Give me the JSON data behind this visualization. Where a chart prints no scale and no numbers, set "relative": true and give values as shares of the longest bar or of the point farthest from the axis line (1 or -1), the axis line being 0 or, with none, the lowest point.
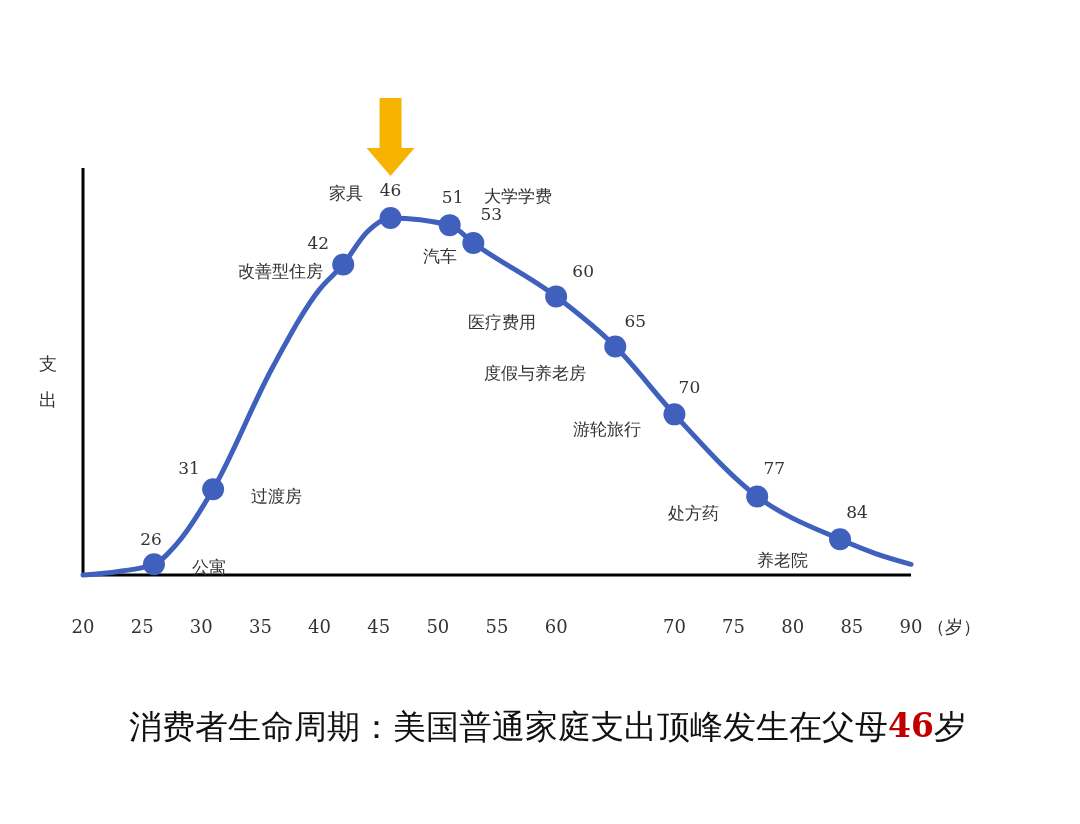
{
  "chart_data": {
    "type": "line",
    "relative": true,
    "title": "消费者生命周期：美国普通家庭支出顶峰发生在父母46岁",
    "ylabel": "支出",
    "xlabel": "（岁）",
    "xlim": [
      20,
      90
    ],
    "xticks": [
      20,
      25,
      30,
      35,
      40,
      45,
      50,
      55,
      60,
      70,
      75,
      80,
      85,
      90
    ],
    "grid": false,
    "series": [
      {
        "color": "#3f60bd",
        "marker": "none",
        "x": [
          20,
          23,
          26,
          28,
          31,
          36,
          40,
          42,
          44,
          46,
          51,
          53,
          60,
          65,
          70,
          77,
          84,
          87,
          90
        ],
        "values": [
          0.0,
          0.01,
          0.03,
          0.09,
          0.24,
          0.58,
          0.8,
          0.87,
          0.96,
          1.0,
          0.98,
          0.93,
          0.78,
          0.64,
          0.45,
          0.22,
          0.1,
          0.06,
          0.03
        ]
      },
      {
        "type": "scatter",
        "color": "#3f60bd",
        "marker": "circle",
        "x": [
          26,
          31,
          42,
          46,
          51,
          53,
          60,
          65,
          70,
          77,
          84
        ],
        "values": [
          0.03,
          0.24,
          0.87,
          1.0,
          0.98,
          0.93,
          0.78,
          0.64,
          0.45,
          0.22,
          0.1
        ]
      }
    ],
    "annotations": [
      {
        "text": "26",
        "x": 26,
        "y": 0.03
      },
      {
        "text": "公寓",
        "x": 26,
        "y": 0.03
      },
      {
        "text": "31",
        "x": 31,
        "y": 0.24
      },
      {
        "text": "过渡房",
        "x": 31,
        "y": 0.24
      },
      {
        "text": "42",
        "x": 42,
        "y": 0.87
      },
      {
        "text": "改善型住房",
        "x": 42,
        "y": 0.87
      },
      {
        "text": "46",
        "x": 46,
        "y": 1.0
      },
      {
        "text": "家具",
        "x": 46,
        "y": 1.0
      },
      {
        "text": "51",
        "x": 51,
        "y": 0.98
      },
      {
        "text": "汽车",
        "x": 51,
        "y": 0.98
      },
      {
        "text": "53",
        "x": 53,
        "y": 0.93
      },
      {
        "text": "大学学费",
        "x": 53,
        "y": 0.93
      },
      {
        "text": "60",
        "x": 60,
        "y": 0.78
      },
      {
        "text": "医疗费用",
        "x": 60,
        "y": 0.78
      },
      {
        "text": "65",
        "x": 65,
        "y": 0.64
      },
      {
        "text": "度假与养老房",
        "x": 65,
        "y": 0.64
      },
      {
        "text": "70",
        "x": 70,
        "y": 0.45
      },
      {
        "text": "游轮旅行",
        "x": 70,
        "y": 0.45
      },
      {
        "text": "77",
        "x": 77,
        "y": 0.22
      },
      {
        "text": "处方药",
        "x": 77,
        "y": 0.22
      },
      {
        "text": "84",
        "x": 84,
        "y": 0.1
      },
      {
        "text": "养老院",
        "x": 84,
        "y": 0.1
      }
    ]
  }
}
